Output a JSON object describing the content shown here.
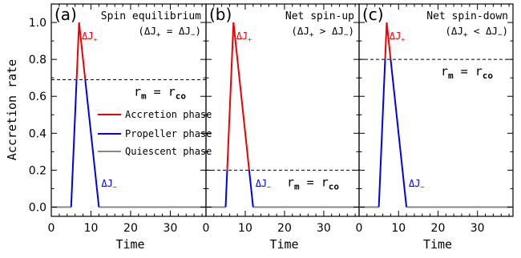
{
  "chart_data": [
    {
      "type": "line",
      "panel_label": "(a)",
      "title": "Spin equilibrium",
      "condition": {
        "left": "ΔJ",
        "left_sub": "+",
        "op": "=",
        "right": "ΔJ",
        "right_sub": "−"
      },
      "xlabel": "Time",
      "ylabel": "Accretion rate",
      "xlim": [
        0,
        39
      ],
      "ylim": [
        -0.05,
        1.1
      ],
      "xticks": [
        0,
        10,
        20,
        30
      ],
      "yticks": [
        0.0,
        0.2,
        0.4,
        0.6,
        0.8,
        1.0
      ],
      "threshold": 0.69,
      "threshold_label": {
        "lhs": "r",
        "lhs_sub": "m",
        "eq": "=",
        "rhs": "r",
        "rhs_sub": "co"
      },
      "series": [
        {
          "name": "Accretion phase",
          "color": "#ee0000"
        },
        {
          "name": "Propeller phase",
          "color": "#0000ee"
        },
        {
          "name": "Quiescent phase",
          "color": "#888888"
        }
      ],
      "profile": {
        "quiescent_before": [
          [
            0,
            0
          ],
          [
            5,
            0
          ]
        ],
        "rise": [
          [
            5,
            0
          ],
          [
            7,
            1.0
          ]
        ],
        "fall": [
          [
            7,
            1.0
          ],
          [
            12,
            0
          ]
        ],
        "quiescent_after": [
          [
            12,
            0
          ],
          [
            39,
            0
          ]
        ]
      },
      "annotations": [
        {
          "text": "ΔJ",
          "sub": "+",
          "color": "#ee0000",
          "x": 7.7,
          "y": 0.91
        },
        {
          "text": "ΔJ",
          "sub": "−",
          "color": "#0000ee",
          "x": 12.6,
          "y": 0.11
        }
      ],
      "show_legend": true,
      "show_ylabels": true
    },
    {
      "type": "line",
      "panel_label": "(b)",
      "title": "Net spin-up",
      "condition": {
        "left": "ΔJ",
        "left_sub": "+",
        "op": ">",
        "right": "ΔJ",
        "right_sub": "−"
      },
      "xlabel": "Time",
      "xlim": [
        0,
        39
      ],
      "ylim": [
        -0.05,
        1.1
      ],
      "xticks": [
        0,
        10,
        20,
        30
      ],
      "threshold": 0.2,
      "threshold_label": {
        "lhs": "r",
        "lhs_sub": "m",
        "eq": "=",
        "rhs": "r",
        "rhs_sub": "co"
      },
      "series": [
        {
          "name": "Accretion phase",
          "color": "#ee0000"
        },
        {
          "name": "Propeller phase",
          "color": "#0000ee"
        },
        {
          "name": "Quiescent phase",
          "color": "#888888"
        }
      ],
      "profile": {
        "quiescent_before": [
          [
            0,
            0
          ],
          [
            5,
            0
          ]
        ],
        "rise": [
          [
            5,
            0
          ],
          [
            7,
            1.0
          ]
        ],
        "fall": [
          [
            7,
            1.0
          ],
          [
            12,
            0
          ]
        ],
        "quiescent_after": [
          [
            12,
            0
          ],
          [
            39,
            0
          ]
        ]
      },
      "annotations": [
        {
          "text": "ΔJ",
          "sub": "+",
          "color": "#ee0000",
          "x": 7.7,
          "y": 0.91
        },
        {
          "text": "ΔJ",
          "sub": "−",
          "color": "#0000ee",
          "x": 12.6,
          "y": 0.11
        }
      ],
      "show_legend": false,
      "show_ylabels": false
    },
    {
      "type": "line",
      "panel_label": "(c)",
      "title": "Net spin-down",
      "condition": {
        "left": "ΔJ",
        "left_sub": "+",
        "op": "<",
        "right": "ΔJ",
        "right_sub": "−"
      },
      "xlabel": "Time",
      "xlim": [
        0,
        39
      ],
      "ylim": [
        -0.05,
        1.1
      ],
      "xticks": [
        0,
        10,
        20,
        30
      ],
      "threshold": 0.8,
      "threshold_label": {
        "lhs": "r",
        "lhs_sub": "m",
        "eq": "=",
        "rhs": "r",
        "rhs_sub": "co"
      },
      "series": [
        {
          "name": "Accretion phase",
          "color": "#ee0000"
        },
        {
          "name": "Propeller phase",
          "color": "#0000ee"
        },
        {
          "name": "Quiescent phase",
          "color": "#888888"
        }
      ],
      "profile": {
        "quiescent_before": [
          [
            0,
            0
          ],
          [
            5,
            0
          ]
        ],
        "rise": [
          [
            5,
            0
          ],
          [
            7,
            1.0
          ]
        ],
        "fall": [
          [
            7,
            1.0
          ],
          [
            12,
            0
          ]
        ],
        "quiescent_after": [
          [
            12,
            0
          ],
          [
            39,
            0
          ]
        ]
      },
      "annotations": [
        {
          "text": "ΔJ",
          "sub": "+",
          "color": "#ee0000",
          "x": 7.7,
          "y": 0.91
        },
        {
          "text": "ΔJ",
          "sub": "−",
          "color": "#0000ee",
          "x": 12.6,
          "y": 0.11
        }
      ],
      "show_legend": false,
      "show_ylabels": false
    }
  ]
}
